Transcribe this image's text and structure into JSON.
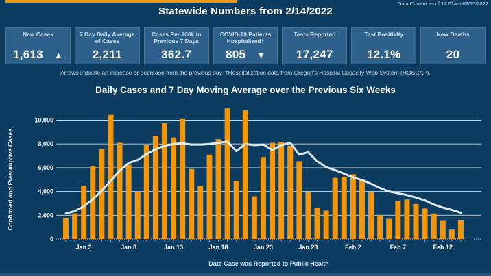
{
  "page": {
    "data_current": "Data Current as of 12:01am 02/15/2022",
    "title": "Statewide Numbers from 2/14/2022",
    "footnote": "Arrows indicate an increase or decrease from the previous day. †Hospitalization data from Oregon's Hospital Capacity Web System (HOSCAP)."
  },
  "icons": {
    "up_arrow": "▲",
    "down_arrow": "▼"
  },
  "colors": {
    "background": "#0D3C61",
    "card_background": "#2D608A",
    "card_border": "#47749B",
    "accent_orange": "#F0970F",
    "bar_color": "#F0970F",
    "line_color": "#E8F1F8",
    "gridline": "#FFFFFF",
    "muted_text": "#CFE2F2",
    "bottom_strip": "#24547B"
  },
  "cards": [
    {
      "label": "New Cases",
      "value": "1,613",
      "arrow": "up"
    },
    {
      "label": "7 Day Daily Average of Cases",
      "value": "2,211",
      "arrow": ""
    },
    {
      "label": "Cases Per 100k in Previous 7 Days",
      "value": "362.7",
      "arrow": ""
    },
    {
      "label": "COVID-19 Patients Hospitalized†",
      "value": "805",
      "arrow": "down"
    },
    {
      "label": "Tests Reported",
      "value": "17,247",
      "arrow": ""
    },
    {
      "label": "Test Positivity",
      "value": "12.1%",
      "arrow": ""
    },
    {
      "label": "New Deaths",
      "value": "20",
      "arrow": ""
    }
  ],
  "chart_data": {
    "type": "bar",
    "title": "Daily Cases and 7 Day Moving Average over the Previous Six Weeks",
    "xlabel": "Date Case was Reported to Public Health",
    "ylabel": "Confirmed and Presumptive Cases",
    "ylim": [
      0,
      10000
    ],
    "grid": true,
    "legend": "none",
    "ytick_values": [
      0,
      2000,
      4000,
      6000,
      8000,
      10000
    ],
    "ytick_labels": [
      "0",
      "2,000",
      "4,000",
      "6,000",
      "8,000",
      "10,000"
    ],
    "xtick_days": [
      2,
      7,
      12,
      17,
      22,
      27,
      32,
      37,
      42
    ],
    "xtick_labels": [
      "Jan 3",
      "Jan 8",
      "Jan 13",
      "Jan 18",
      "Jan 23",
      "Jan 28",
      "Feb 2",
      "Feb 7",
      "Feb 12"
    ],
    "dates": [
      "Jan 1",
      "Jan 2",
      "Jan 3",
      "Jan 4",
      "Jan 5",
      "Jan 6",
      "Jan 7",
      "Jan 8",
      "Jan 9",
      "Jan 10",
      "Jan 11",
      "Jan 12",
      "Jan 13",
      "Jan 14",
      "Jan 15",
      "Jan 16",
      "Jan 17",
      "Jan 18",
      "Jan 19",
      "Jan 20",
      "Jan 21",
      "Jan 22",
      "Jan 23",
      "Jan 24",
      "Jan 25",
      "Jan 26",
      "Jan 27",
      "Jan 28",
      "Jan 29",
      "Jan 30",
      "Jan 31",
      "Feb 1",
      "Feb 2",
      "Feb 3",
      "Feb 4",
      "Feb 5",
      "Feb 6",
      "Feb 7",
      "Feb 8",
      "Feb 9",
      "Feb 10",
      "Feb 11",
      "Feb 12",
      "Feb 13",
      "Feb 14"
    ],
    "series": [
      {
        "name": "Daily Cases",
        "render": "bar",
        "color": "#F0970F",
        "values": [
          1750,
          2150,
          4500,
          6150,
          7600,
          10450,
          8100,
          6250,
          4000,
          7900,
          8700,
          9750,
          8550,
          10100,
          5900,
          4450,
          7100,
          8400,
          11000,
          4900,
          10850,
          3600,
          6900,
          8100,
          8150,
          7850,
          6550,
          3950,
          2600,
          2400,
          5150,
          5250,
          5450,
          5000,
          3950,
          2000,
          1700,
          3200,
          3330,
          2950,
          2570,
          2150,
          1580,
          800,
          1613
        ]
      },
      {
        "name": "7 Day Moving Average",
        "render": "line",
        "color": "#E8F1F8",
        "values": [
          2150,
          2350,
          2750,
          3350,
          4050,
          4900,
          5750,
          6400,
          6650,
          7150,
          7550,
          7850,
          8000,
          8050,
          7950,
          7950,
          8000,
          8100,
          8200,
          7400,
          8000,
          7900,
          7950,
          7500,
          7900,
          8100,
          7100,
          7300,
          6550,
          6050,
          5800,
          5500,
          5200,
          4950,
          4650,
          4300,
          4000,
          3850,
          3700,
          3500,
          3250,
          2900,
          2650,
          2450,
          2211
        ]
      }
    ]
  }
}
